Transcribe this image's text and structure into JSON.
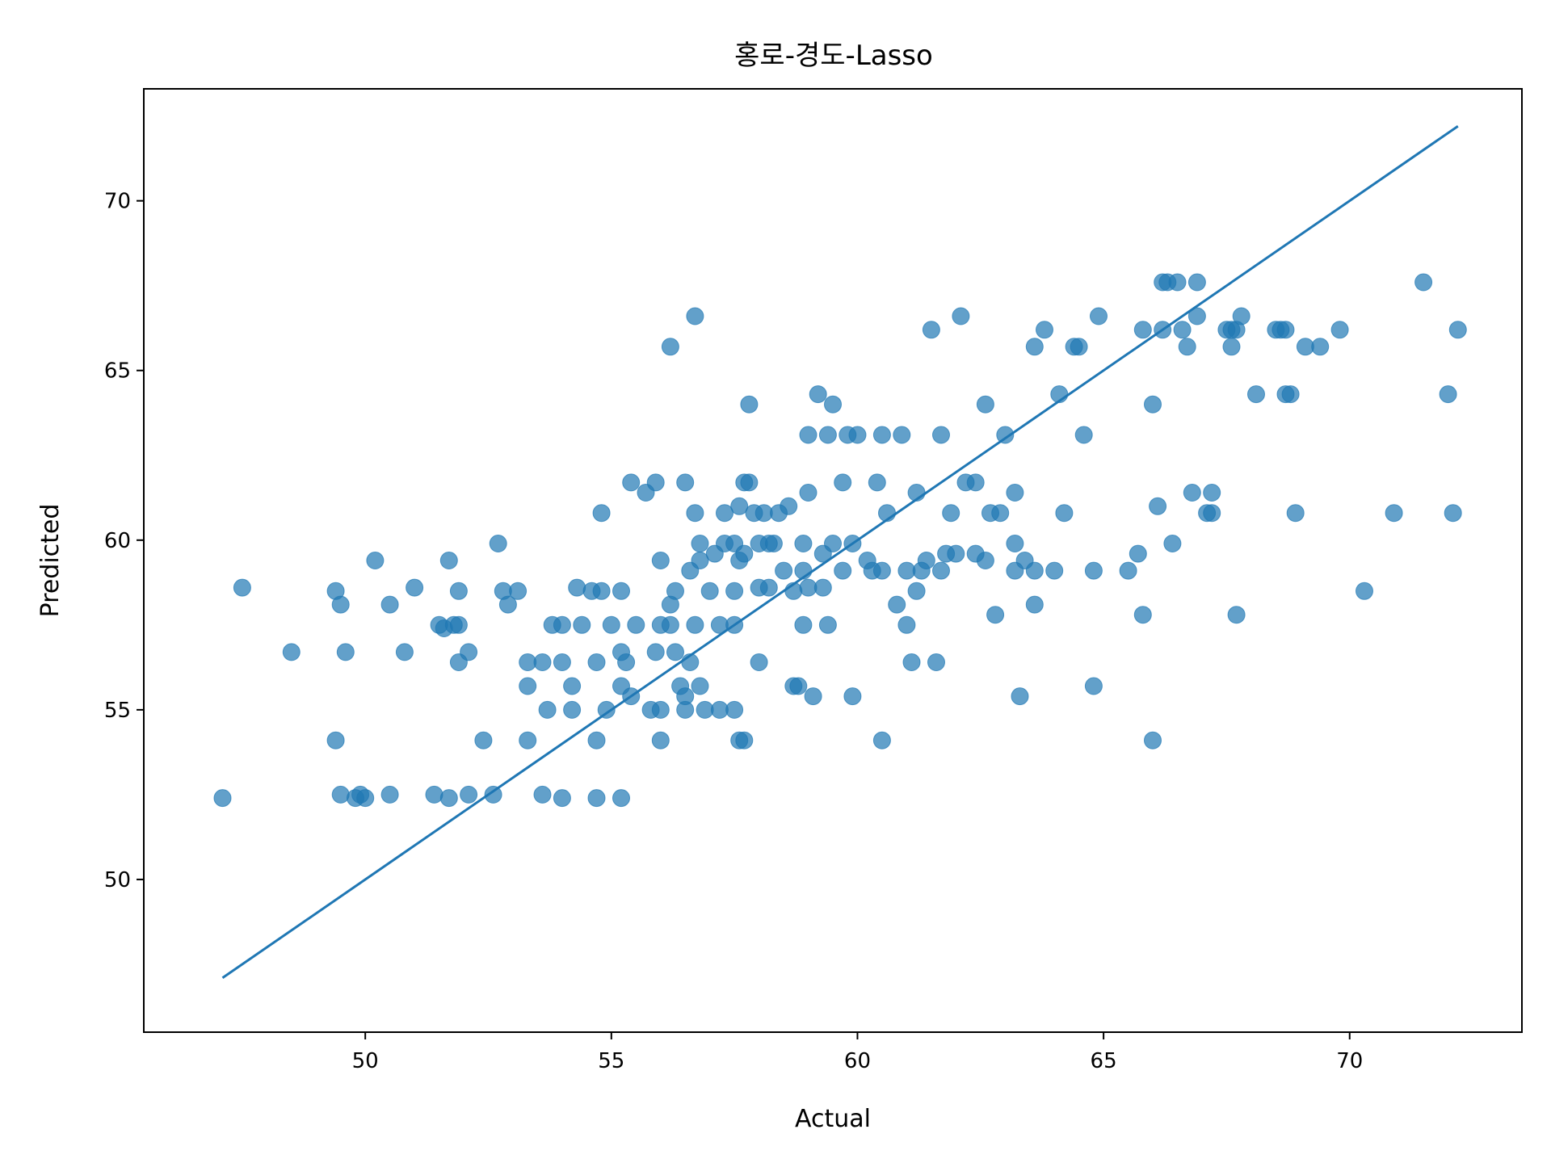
{
  "chart_data": {
    "type": "scatter",
    "title": "홍로-경도-Lasso",
    "xlabel": "Actual",
    "ylabel": "Predicted",
    "xlim": [
      45.5,
      73.5
    ],
    "ylim": [
      45.5,
      73.3
    ],
    "xticks": [
      50,
      55,
      60,
      65,
      70
    ],
    "yticks": [
      50,
      55,
      60,
      65,
      70
    ],
    "grid": false,
    "colors": {
      "points": "#1f77b4",
      "line": "#1f77b4"
    },
    "points": [
      [
        47.1,
        52.4
      ],
      [
        47.5,
        58.6
      ],
      [
        48.5,
        56.7
      ],
      [
        49.4,
        54.1
      ],
      [
        49.4,
        58.5
      ],
      [
        49.5,
        58.1
      ],
      [
        49.5,
        52.5
      ],
      [
        49.6,
        56.7
      ],
      [
        49.8,
        52.4
      ],
      [
        49.9,
        52.5
      ],
      [
        50.0,
        52.4
      ],
      [
        50.2,
        59.4
      ],
      [
        50.5,
        58.1
      ],
      [
        50.5,
        52.5
      ],
      [
        50.8,
        56.7
      ],
      [
        51.0,
        58.6
      ],
      [
        51.4,
        52.5
      ],
      [
        51.5,
        57.5
      ],
      [
        51.6,
        57.4
      ],
      [
        51.7,
        59.4
      ],
      [
        51.7,
        52.4
      ],
      [
        51.8,
        57.5
      ],
      [
        51.9,
        56.4
      ],
      [
        51.9,
        57.5
      ],
      [
        51.9,
        58.5
      ],
      [
        52.1,
        56.7
      ],
      [
        52.1,
        52.5
      ],
      [
        52.4,
        54.1
      ],
      [
        52.6,
        52.5
      ],
      [
        52.7,
        59.9
      ],
      [
        52.8,
        58.5
      ],
      [
        52.9,
        58.1
      ],
      [
        53.1,
        58.5
      ],
      [
        53.3,
        55.7
      ],
      [
        53.3,
        56.4
      ],
      [
        53.3,
        54.1
      ],
      [
        53.6,
        56.4
      ],
      [
        53.6,
        52.5
      ],
      [
        53.7,
        55.0
      ],
      [
        53.8,
        57.5
      ],
      [
        54.0,
        57.5
      ],
      [
        54.0,
        56.4
      ],
      [
        54.0,
        52.4
      ],
      [
        54.2,
        55.7
      ],
      [
        54.2,
        55.0
      ],
      [
        54.3,
        58.6
      ],
      [
        54.4,
        57.5
      ],
      [
        54.6,
        58.5
      ],
      [
        54.7,
        56.4
      ],
      [
        54.7,
        54.1
      ],
      [
        54.7,
        52.4
      ],
      [
        54.8,
        58.5
      ],
      [
        54.8,
        60.8
      ],
      [
        54.9,
        55.0
      ],
      [
        55.0,
        57.5
      ],
      [
        55.2,
        56.7
      ],
      [
        55.2,
        58.5
      ],
      [
        55.2,
        55.7
      ],
      [
        55.2,
        52.4
      ],
      [
        55.3,
        56.4
      ],
      [
        55.4,
        61.7
      ],
      [
        55.4,
        55.4
      ],
      [
        55.5,
        57.5
      ],
      [
        55.7,
        61.4
      ],
      [
        55.8,
        55.0
      ],
      [
        55.9,
        61.7
      ],
      [
        55.9,
        56.7
      ],
      [
        56.0,
        59.4
      ],
      [
        56.0,
        57.5
      ],
      [
        56.0,
        55.0
      ],
      [
        56.0,
        54.1
      ],
      [
        56.2,
        65.7
      ],
      [
        56.2,
        57.5
      ],
      [
        56.2,
        58.1
      ],
      [
        56.3,
        58.5
      ],
      [
        56.3,
        56.7
      ],
      [
        56.4,
        55.7
      ],
      [
        56.5,
        55.4
      ],
      [
        56.5,
        61.7
      ],
      [
        56.5,
        55.0
      ],
      [
        56.6,
        59.1
      ],
      [
        56.6,
        56.4
      ],
      [
        56.7,
        66.6
      ],
      [
        56.7,
        60.8
      ],
      [
        56.7,
        57.5
      ],
      [
        56.8,
        59.4
      ],
      [
        56.8,
        59.9
      ],
      [
        56.8,
        55.7
      ],
      [
        56.9,
        55.0
      ],
      [
        57.0,
        58.5
      ],
      [
        57.1,
        59.6
      ],
      [
        57.2,
        55.0
      ],
      [
        57.2,
        57.5
      ],
      [
        57.3,
        60.8
      ],
      [
        57.3,
        59.9
      ],
      [
        57.5,
        59.9
      ],
      [
        57.5,
        58.5
      ],
      [
        57.5,
        57.5
      ],
      [
        57.5,
        55.0
      ],
      [
        57.6,
        59.4
      ],
      [
        57.6,
        54.1
      ],
      [
        57.6,
        61.0
      ],
      [
        57.7,
        61.7
      ],
      [
        57.7,
        59.6
      ],
      [
        57.7,
        54.1
      ],
      [
        57.8,
        61.7
      ],
      [
        57.8,
        64.0
      ],
      [
        57.9,
        60.8
      ],
      [
        58.0,
        59.9
      ],
      [
        58.0,
        58.6
      ],
      [
        58.0,
        56.4
      ],
      [
        58.1,
        60.8
      ],
      [
        58.2,
        59.9
      ],
      [
        58.2,
        58.6
      ],
      [
        58.3,
        59.9
      ],
      [
        58.4,
        60.8
      ],
      [
        58.5,
        59.1
      ],
      [
        58.6,
        61.0
      ],
      [
        58.7,
        58.5
      ],
      [
        58.7,
        55.7
      ],
      [
        58.8,
        55.7
      ],
      [
        58.9,
        59.1
      ],
      [
        58.9,
        59.9
      ],
      [
        58.9,
        57.5
      ],
      [
        59.0,
        63.1
      ],
      [
        59.0,
        61.4
      ],
      [
        59.0,
        58.6
      ],
      [
        59.1,
        55.4
      ],
      [
        59.2,
        64.3
      ],
      [
        59.3,
        58.6
      ],
      [
        59.3,
        59.6
      ],
      [
        59.4,
        63.1
      ],
      [
        59.4,
        57.5
      ],
      [
        59.5,
        64.0
      ],
      [
        59.5,
        59.9
      ],
      [
        59.7,
        59.1
      ],
      [
        59.7,
        61.7
      ],
      [
        59.8,
        63.1
      ],
      [
        59.9,
        59.9
      ],
      [
        59.9,
        55.4
      ],
      [
        60.0,
        63.1
      ],
      [
        60.2,
        59.4
      ],
      [
        60.3,
        59.1
      ],
      [
        60.4,
        61.7
      ],
      [
        60.5,
        59.1
      ],
      [
        60.5,
        63.1
      ],
      [
        60.5,
        54.1
      ],
      [
        60.6,
        60.8
      ],
      [
        60.8,
        58.1
      ],
      [
        60.9,
        63.1
      ],
      [
        61.0,
        59.1
      ],
      [
        61.0,
        57.5
      ],
      [
        61.1,
        56.4
      ],
      [
        61.2,
        58.5
      ],
      [
        61.2,
        61.4
      ],
      [
        61.3,
        59.1
      ],
      [
        61.4,
        59.4
      ],
      [
        61.5,
        66.2
      ],
      [
        61.6,
        56.4
      ],
      [
        61.7,
        59.1
      ],
      [
        61.7,
        63.1
      ],
      [
        61.8,
        59.6
      ],
      [
        61.9,
        60.8
      ],
      [
        62.0,
        59.6
      ],
      [
        62.1,
        66.6
      ],
      [
        62.2,
        61.7
      ],
      [
        62.4,
        61.7
      ],
      [
        62.4,
        59.6
      ],
      [
        62.6,
        64.0
      ],
      [
        62.6,
        59.4
      ],
      [
        62.7,
        60.8
      ],
      [
        62.8,
        57.8
      ],
      [
        62.9,
        60.8
      ],
      [
        63.0,
        63.1
      ],
      [
        63.2,
        61.4
      ],
      [
        63.2,
        59.9
      ],
      [
        63.2,
        59.1
      ],
      [
        63.3,
        55.4
      ],
      [
        63.4,
        59.4
      ],
      [
        63.6,
        58.1
      ],
      [
        63.6,
        65.7
      ],
      [
        63.6,
        59.1
      ],
      [
        63.8,
        66.2
      ],
      [
        64.0,
        59.1
      ],
      [
        64.1,
        64.3
      ],
      [
        64.2,
        60.8
      ],
      [
        64.4,
        65.7
      ],
      [
        64.5,
        65.7
      ],
      [
        64.6,
        63.1
      ],
      [
        64.8,
        59.1
      ],
      [
        64.8,
        55.7
      ],
      [
        64.9,
        66.6
      ],
      [
        65.5,
        59.1
      ],
      [
        65.7,
        59.6
      ],
      [
        65.8,
        66.2
      ],
      [
        65.8,
        57.8
      ],
      [
        66.0,
        64.0
      ],
      [
        66.0,
        54.1
      ],
      [
        66.1,
        61.0
      ],
      [
        66.2,
        67.6
      ],
      [
        66.2,
        66.2
      ],
      [
        66.3,
        67.6
      ],
      [
        66.4,
        59.9
      ],
      [
        66.5,
        67.6
      ],
      [
        66.6,
        66.2
      ],
      [
        66.7,
        65.7
      ],
      [
        66.8,
        61.4
      ],
      [
        66.9,
        66.6
      ],
      [
        66.9,
        67.6
      ],
      [
        67.1,
        60.8
      ],
      [
        67.2,
        61.4
      ],
      [
        67.2,
        60.8
      ],
      [
        67.5,
        66.2
      ],
      [
        67.6,
        65.7
      ],
      [
        67.6,
        66.2
      ],
      [
        67.7,
        57.8
      ],
      [
        67.7,
        66.2
      ],
      [
        67.8,
        66.6
      ],
      [
        68.1,
        64.3
      ],
      [
        68.5,
        66.2
      ],
      [
        68.6,
        66.2
      ],
      [
        68.7,
        66.2
      ],
      [
        68.7,
        64.3
      ],
      [
        68.8,
        64.3
      ],
      [
        68.9,
        60.8
      ],
      [
        69.1,
        65.7
      ],
      [
        69.4,
        65.7
      ],
      [
        69.8,
        66.2
      ],
      [
        70.3,
        58.5
      ],
      [
        70.9,
        60.8
      ],
      [
        71.5,
        67.6
      ],
      [
        72.0,
        64.3
      ],
      [
        72.1,
        60.8
      ],
      [
        72.2,
        66.2
      ]
    ],
    "reference_line": {
      "x": [
        47.1,
        72.2
      ],
      "y": [
        47.1,
        72.2
      ]
    }
  }
}
